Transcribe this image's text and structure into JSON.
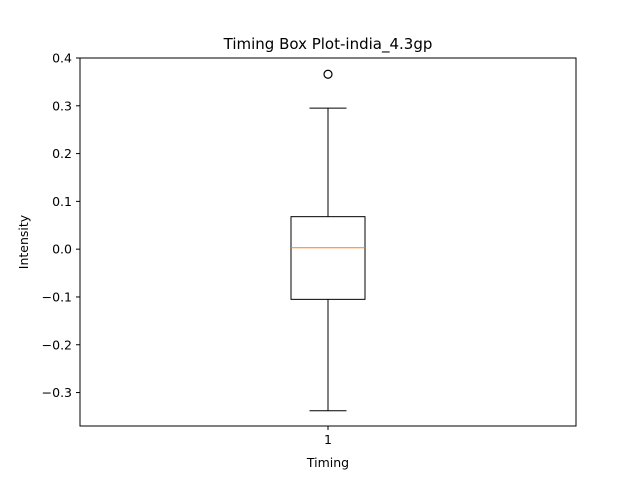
{
  "chart_data": {
    "type": "box",
    "title": "Timing Box Plot-india_4.3gp",
    "xlabel": "Timing",
    "ylabel": "Intensity",
    "categories": [
      "1"
    ],
    "ylim": [
      -0.37,
      0.4
    ],
    "yticks": [
      0.4,
      0.3,
      0.2,
      0.1,
      0.0,
      -0.1,
      -0.2,
      -0.3
    ],
    "ytick_labels": [
      "0.4",
      "0.3",
      "0.2",
      "0.1",
      "0.0",
      "−0.1",
      "−0.2",
      "−0.3"
    ],
    "grid": false,
    "boxes": [
      {
        "category": "1",
        "whisker_low": -0.338,
        "q1": -0.105,
        "median": 0.003,
        "q3": 0.068,
        "whisker_high": 0.295,
        "outliers": [
          0.366
        ]
      }
    ],
    "colors": {
      "box": "#000000",
      "median": "#ff7f0e",
      "outlier": "#000000"
    }
  }
}
